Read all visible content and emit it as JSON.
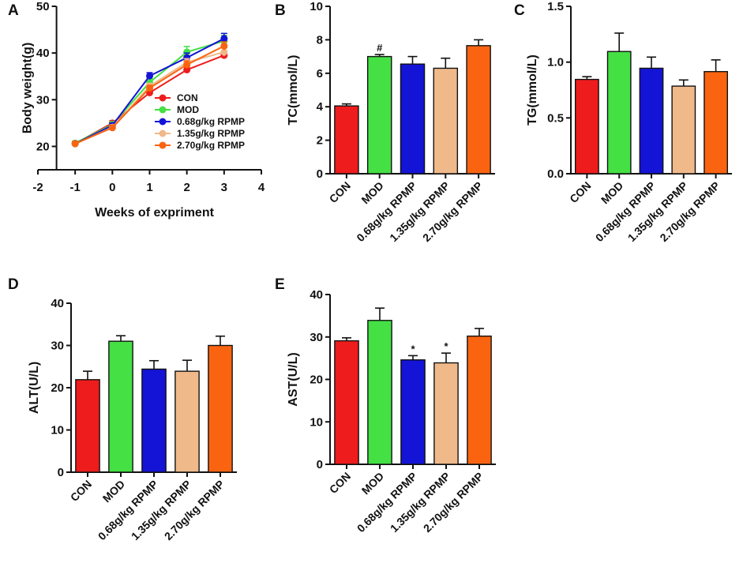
{
  "chart_data": [
    {
      "panel": "A",
      "type": "line",
      "xlabel": "Weeks of expriment",
      "ylabel": "Body weight(g)",
      "xlim": [
        -2,
        4
      ],
      "ylim": [
        15,
        50
      ],
      "xticks": [
        -2,
        -1,
        0,
        1,
        2,
        3,
        4
      ],
      "yticks": [
        20,
        30,
        40,
        50
      ],
      "x": [
        -1,
        0,
        1,
        2,
        3
      ],
      "series": [
        {
          "name": "CON",
          "color": "#ee1c1c",
          "values": [
            20.6,
            25.0,
            31.5,
            36.4,
            39.5
          ],
          "err": [
            0.4,
            0.5,
            0.6,
            0.6,
            0.7
          ]
        },
        {
          "name": "MOD",
          "color": "#44e044",
          "values": [
            20.7,
            24.7,
            33.7,
            40.2,
            42.6
          ],
          "err": [
            0.4,
            0.6,
            0.8,
            1.2,
            1.2
          ]
        },
        {
          "name": "0.68g/kg RPMP",
          "color": "#1414d6",
          "values": [
            20.6,
            24.5,
            35.1,
            39.0,
            43.1
          ],
          "err": [
            0.4,
            0.5,
            0.7,
            1.0,
            1.1
          ]
        },
        {
          "name": "1.35g/kg RPMP",
          "color": "#f0b98a",
          "values": [
            20.5,
            24.1,
            32.9,
            38.0,
            40.2
          ],
          "err": [
            0.4,
            0.5,
            0.6,
            0.8,
            0.9
          ]
        },
        {
          "name": "2.70g/kg RPMP",
          "color": "#fa6410",
          "values": [
            20.6,
            24.0,
            32.5,
            37.5,
            41.5
          ],
          "err": [
            0.4,
            0.5,
            0.6,
            0.8,
            0.9
          ]
        }
      ]
    },
    {
      "panel": "B",
      "type": "bar",
      "ylabel": "TC(mmol/L)",
      "ylim": [
        0,
        10
      ],
      "yticks": [
        0,
        2,
        4,
        6,
        8,
        10
      ],
      "categories": [
        "CON",
        "MOD",
        "0.68g/kg RPMP",
        "1.35g/kg RPMP",
        "2.70g/kg RPMP"
      ],
      "values": [
        4.05,
        7.0,
        6.55,
        6.3,
        7.65
      ],
      "err": [
        0.12,
        0.12,
        0.45,
        0.6,
        0.35
      ],
      "annotations": [
        "",
        "#",
        "",
        "",
        ""
      ]
    },
    {
      "panel": "C",
      "type": "bar",
      "ylabel": "TG(mmol/L)",
      "ylim": [
        0,
        1.5
      ],
      "yticks": [
        0.0,
        0.5,
        1.0,
        1.5
      ],
      "yticklabels": [
        "0.0",
        "0.5",
        "1.0",
        "1.5"
      ],
      "categories": [
        "CON",
        "MOD",
        "0.68g/kg RPMP",
        "1.35g/kg RPMP",
        "2.70g/kg RPMP"
      ],
      "values": [
        0.845,
        1.095,
        0.945,
        0.785,
        0.915
      ],
      "err": [
        0.025,
        0.165,
        0.1,
        0.055,
        0.105
      ],
      "annotations": [
        "",
        "",
        "",
        "",
        ""
      ]
    },
    {
      "panel": "D",
      "type": "bar",
      "ylabel": "ALT(U/L)",
      "ylim": [
        0,
        40
      ],
      "yticks": [
        0,
        10,
        20,
        30,
        40
      ],
      "categories": [
        "CON",
        "MOD",
        "0.68g/kg RPMP",
        "1.35g/kg RPMP",
        "2.70g/kg RPMP"
      ],
      "values": [
        21.9,
        31.0,
        24.4,
        23.9,
        30.0
      ],
      "err": [
        2.0,
        1.3,
        2.0,
        2.6,
        2.2
      ],
      "annotations": [
        "",
        "",
        "",
        "",
        ""
      ]
    },
    {
      "panel": "E",
      "type": "bar",
      "ylabel": "AST(U/L)",
      "ylim": [
        0,
        40
      ],
      "yticks": [
        0,
        10,
        20,
        30,
        40
      ],
      "categories": [
        "CON",
        "MOD",
        "0.68g/kg RPMP",
        "1.35g/kg RPMP",
        "2.70g/kg RPMP"
      ],
      "values": [
        29.1,
        33.9,
        24.6,
        23.9,
        30.2
      ],
      "err": [
        0.7,
        2.9,
        1.0,
        2.3,
        1.8
      ],
      "annotations": [
        "",
        "",
        "*",
        "*",
        ""
      ]
    }
  ],
  "bar_colors": [
    "#ee1c1c",
    "#44e044",
    "#1414d6",
    "#f0b98a",
    "#fa6410"
  ]
}
